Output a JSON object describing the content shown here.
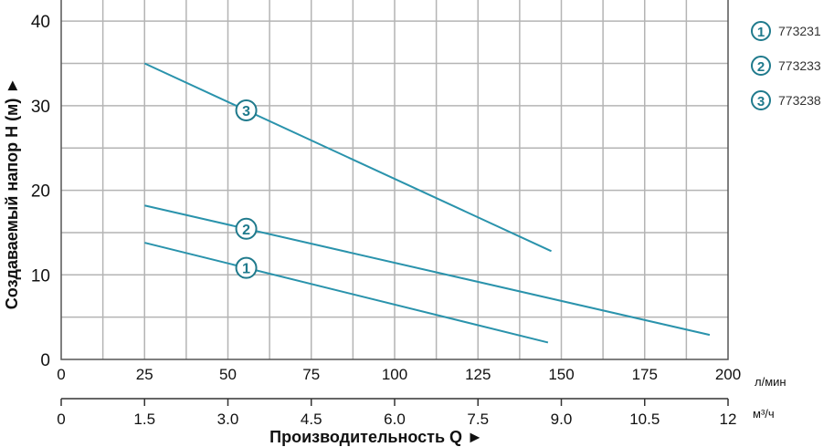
{
  "chart_data": {
    "type": "line",
    "xlabel": "Производительность Q ►",
    "ylabel": "Создаваемый напор H (м) ►",
    "x_unit": "л/мин",
    "x2_unit": "м³/ч",
    "xlim": [
      0,
      200
    ],
    "ylim": [
      0,
      42.5
    ],
    "x_ticks": [
      0,
      25,
      50,
      75,
      100,
      125,
      150,
      175,
      200
    ],
    "x2_ticks": [
      "0",
      "1.5",
      "3.0",
      "4.5",
      "6.0",
      "7.5",
      "9.0",
      "10.5",
      "12"
    ],
    "y_ticks": [
      0,
      10,
      20,
      30,
      40
    ],
    "grid": true,
    "legend_position": "right",
    "line_color": "#2a93ac",
    "marker_color": "#1f7a8c",
    "series": [
      {
        "name": "773231",
        "marker": "1",
        "x": [
          25,
          146
        ],
        "y": [
          13.8,
          2.0
        ],
        "marker_x": 55.5
      },
      {
        "name": "773233",
        "marker": "2",
        "x": [
          25,
          194.5
        ],
        "y": [
          18.2,
          2.9
        ],
        "marker_x": 55.5
      },
      {
        "name": "773238",
        "marker": "3",
        "x": [
          25,
          147
        ],
        "y": [
          35,
          12.8
        ],
        "marker_x": 55.5
      }
    ]
  }
}
